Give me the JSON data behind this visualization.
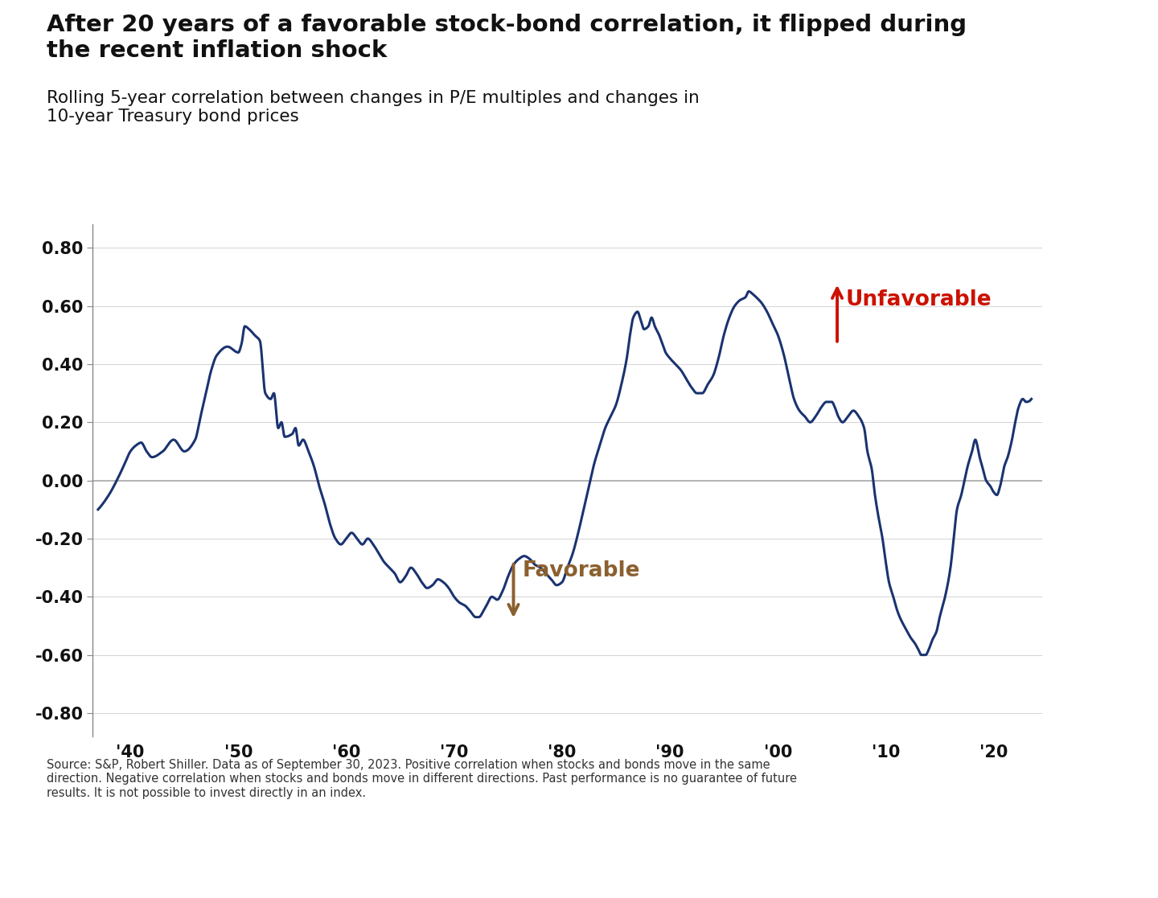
{
  "title": "After 20 years of a favorable stock-bond correlation, it flipped during\nthe recent inflation shock",
  "subtitle": "Rolling 5-year correlation between changes in P/E multiples and changes in\n10-year Treasury bond prices",
  "footnote": "Source: S&P, Robert Shiller. Data as of September 30, 2023. Positive correlation when stocks and bonds move in the same\ndirection. Negative correlation when stocks and bonds move in different directions. Past performance is no guarantee of future\nresults. It is not possible to invest directly in an index.",
  "line_color": "#1a3370",
  "background_color": "#ffffff",
  "zero_line_color": "#aaaaaa",
  "ytick_labels": [
    "-0.80",
    "-0.60",
    "-0.40",
    "-0.20",
    "0.00",
    "0.20",
    "0.40",
    "0.60",
    "0.80"
  ],
  "ytick_values": [
    -0.8,
    -0.6,
    -0.4,
    -0.2,
    0.0,
    0.2,
    0.4,
    0.6,
    0.8
  ],
  "xtick_labels": [
    "'40",
    "'50",
    "'60",
    "'70",
    "'80",
    "'90",
    "'00",
    "'10",
    "'20"
  ],
  "xtick_positions": [
    1940,
    1950,
    1960,
    1970,
    1980,
    1990,
    2000,
    2010,
    2020
  ],
  "favorable_color": "#8B6030",
  "unfavorable_color": "#cc1100",
  "keypoints": [
    [
      1937.0,
      -0.1
    ],
    [
      1938.0,
      -0.05
    ],
    [
      1939.0,
      0.02
    ],
    [
      1939.5,
      0.06
    ],
    [
      1940.0,
      0.1
    ],
    [
      1940.5,
      0.12
    ],
    [
      1941.0,
      0.13
    ],
    [
      1941.5,
      0.1
    ],
    [
      1942.0,
      0.08
    ],
    [
      1943.0,
      0.1
    ],
    [
      1944.0,
      0.14
    ],
    [
      1945.0,
      0.1
    ],
    [
      1946.0,
      0.14
    ],
    [
      1946.5,
      0.22
    ],
    [
      1947.0,
      0.3
    ],
    [
      1947.5,
      0.38
    ],
    [
      1948.0,
      0.43
    ],
    [
      1949.0,
      0.46
    ],
    [
      1950.0,
      0.44
    ],
    [
      1950.3,
      0.47
    ],
    [
      1950.6,
      0.53
    ],
    [
      1951.0,
      0.52
    ],
    [
      1951.5,
      0.5
    ],
    [
      1952.0,
      0.48
    ],
    [
      1952.5,
      0.3
    ],
    [
      1953.0,
      0.28
    ],
    [
      1953.3,
      0.3
    ],
    [
      1953.7,
      0.18
    ],
    [
      1954.0,
      0.2
    ],
    [
      1954.3,
      0.15
    ],
    [
      1955.0,
      0.16
    ],
    [
      1955.3,
      0.18
    ],
    [
      1955.6,
      0.12
    ],
    [
      1956.0,
      0.14
    ],
    [
      1956.5,
      0.1
    ],
    [
      1957.0,
      0.05
    ],
    [
      1957.5,
      -0.02
    ],
    [
      1958.0,
      -0.08
    ],
    [
      1958.5,
      -0.15
    ],
    [
      1959.0,
      -0.2
    ],
    [
      1959.5,
      -0.22
    ],
    [
      1960.0,
      -0.2
    ],
    [
      1960.5,
      -0.18
    ],
    [
      1961.0,
      -0.2
    ],
    [
      1961.5,
      -0.22
    ],
    [
      1962.0,
      -0.2
    ],
    [
      1962.5,
      -0.22
    ],
    [
      1963.0,
      -0.25
    ],
    [
      1963.5,
      -0.28
    ],
    [
      1964.0,
      -0.3
    ],
    [
      1964.5,
      -0.32
    ],
    [
      1965.0,
      -0.35
    ],
    [
      1965.5,
      -0.33
    ],
    [
      1966.0,
      -0.3
    ],
    [
      1966.5,
      -0.32
    ],
    [
      1967.0,
      -0.35
    ],
    [
      1967.5,
      -0.37
    ],
    [
      1968.0,
      -0.36
    ],
    [
      1968.5,
      -0.34
    ],
    [
      1969.0,
      -0.35
    ],
    [
      1969.5,
      -0.37
    ],
    [
      1970.0,
      -0.4
    ],
    [
      1970.5,
      -0.42
    ],
    [
      1971.0,
      -0.43
    ],
    [
      1971.5,
      -0.45
    ],
    [
      1972.0,
      -0.47
    ],
    [
      1972.3,
      -0.47
    ],
    [
      1972.7,
      -0.45
    ],
    [
      1973.0,
      -0.43
    ],
    [
      1973.5,
      -0.4
    ],
    [
      1974.0,
      -0.41
    ],
    [
      1974.5,
      -0.38
    ],
    [
      1975.0,
      -0.33
    ],
    [
      1975.5,
      -0.29
    ],
    [
      1976.0,
      -0.27
    ],
    [
      1976.5,
      -0.26
    ],
    [
      1977.0,
      -0.27
    ],
    [
      1977.5,
      -0.29
    ],
    [
      1978.0,
      -0.3
    ],
    [
      1978.5,
      -0.32
    ],
    [
      1979.0,
      -0.34
    ],
    [
      1979.5,
      -0.36
    ],
    [
      1980.0,
      -0.35
    ],
    [
      1980.5,
      -0.3
    ],
    [
      1981.0,
      -0.25
    ],
    [
      1981.5,
      -0.18
    ],
    [
      1982.0,
      -0.1
    ],
    [
      1982.5,
      -0.02
    ],
    [
      1983.0,
      0.06
    ],
    [
      1983.5,
      0.12
    ],
    [
      1984.0,
      0.18
    ],
    [
      1984.5,
      0.22
    ],
    [
      1985.0,
      0.26
    ],
    [
      1985.5,
      0.33
    ],
    [
      1986.0,
      0.42
    ],
    [
      1986.3,
      0.5
    ],
    [
      1986.6,
      0.56
    ],
    [
      1987.0,
      0.58
    ],
    [
      1987.3,
      0.55
    ],
    [
      1987.6,
      0.52
    ],
    [
      1988.0,
      0.53
    ],
    [
      1988.3,
      0.56
    ],
    [
      1988.6,
      0.53
    ],
    [
      1989.0,
      0.5
    ],
    [
      1989.3,
      0.47
    ],
    [
      1989.6,
      0.44
    ],
    [
      1990.0,
      0.42
    ],
    [
      1990.5,
      0.4
    ],
    [
      1991.0,
      0.38
    ],
    [
      1991.5,
      0.35
    ],
    [
      1992.0,
      0.32
    ],
    [
      1992.5,
      0.3
    ],
    [
      1993.0,
      0.3
    ],
    [
      1993.5,
      0.33
    ],
    [
      1994.0,
      0.36
    ],
    [
      1994.5,
      0.42
    ],
    [
      1995.0,
      0.5
    ],
    [
      1995.5,
      0.56
    ],
    [
      1996.0,
      0.6
    ],
    [
      1996.5,
      0.62
    ],
    [
      1997.0,
      0.63
    ],
    [
      1997.3,
      0.65
    ],
    [
      1997.7,
      0.64
    ],
    [
      1998.0,
      0.63
    ],
    [
      1998.5,
      0.61
    ],
    [
      1999.0,
      0.58
    ],
    [
      1999.5,
      0.54
    ],
    [
      2000.0,
      0.5
    ],
    [
      2000.5,
      0.44
    ],
    [
      2001.0,
      0.36
    ],
    [
      2001.5,
      0.28
    ],
    [
      2002.0,
      0.24
    ],
    [
      2002.5,
      0.22
    ],
    [
      2003.0,
      0.2
    ],
    [
      2003.5,
      0.22
    ],
    [
      2004.0,
      0.25
    ],
    [
      2004.5,
      0.27
    ],
    [
      2005.0,
      0.27
    ],
    [
      2005.3,
      0.25
    ],
    [
      2005.6,
      0.22
    ],
    [
      2006.0,
      0.2
    ],
    [
      2006.5,
      0.22
    ],
    [
      2007.0,
      0.24
    ],
    [
      2007.5,
      0.22
    ],
    [
      2008.0,
      0.18
    ],
    [
      2008.3,
      0.1
    ],
    [
      2008.7,
      0.04
    ],
    [
      2009.0,
      -0.05
    ],
    [
      2009.3,
      -0.12
    ],
    [
      2009.7,
      -0.2
    ],
    [
      2010.0,
      -0.28
    ],
    [
      2010.3,
      -0.35
    ],
    [
      2010.7,
      -0.4
    ],
    [
      2011.0,
      -0.44
    ],
    [
      2011.3,
      -0.47
    ],
    [
      2011.7,
      -0.5
    ],
    [
      2012.0,
      -0.52
    ],
    [
      2012.3,
      -0.54
    ],
    [
      2012.7,
      -0.56
    ],
    [
      2013.0,
      -0.58
    ],
    [
      2013.3,
      -0.6
    ],
    [
      2013.7,
      -0.6
    ],
    [
      2014.0,
      -0.58
    ],
    [
      2014.3,
      -0.55
    ],
    [
      2014.7,
      -0.52
    ],
    [
      2015.0,
      -0.47
    ],
    [
      2015.5,
      -0.4
    ],
    [
      2016.0,
      -0.3
    ],
    [
      2016.3,
      -0.2
    ],
    [
      2016.6,
      -0.1
    ],
    [
      2017.0,
      -0.05
    ],
    [
      2017.3,
      0.0
    ],
    [
      2017.6,
      0.05
    ],
    [
      2018.0,
      0.1
    ],
    [
      2018.3,
      0.14
    ],
    [
      2018.7,
      0.08
    ],
    [
      2019.0,
      0.04
    ],
    [
      2019.3,
      0.0
    ],
    [
      2019.7,
      -0.02
    ],
    [
      2020.0,
      -0.04
    ],
    [
      2020.3,
      -0.05
    ],
    [
      2020.6,
      -0.02
    ],
    [
      2021.0,
      0.05
    ],
    [
      2021.3,
      0.08
    ],
    [
      2021.7,
      0.14
    ],
    [
      2022.0,
      0.2
    ],
    [
      2022.3,
      0.25
    ],
    [
      2022.7,
      0.28
    ],
    [
      2023.0,
      0.27
    ],
    [
      2023.5,
      0.28
    ]
  ]
}
